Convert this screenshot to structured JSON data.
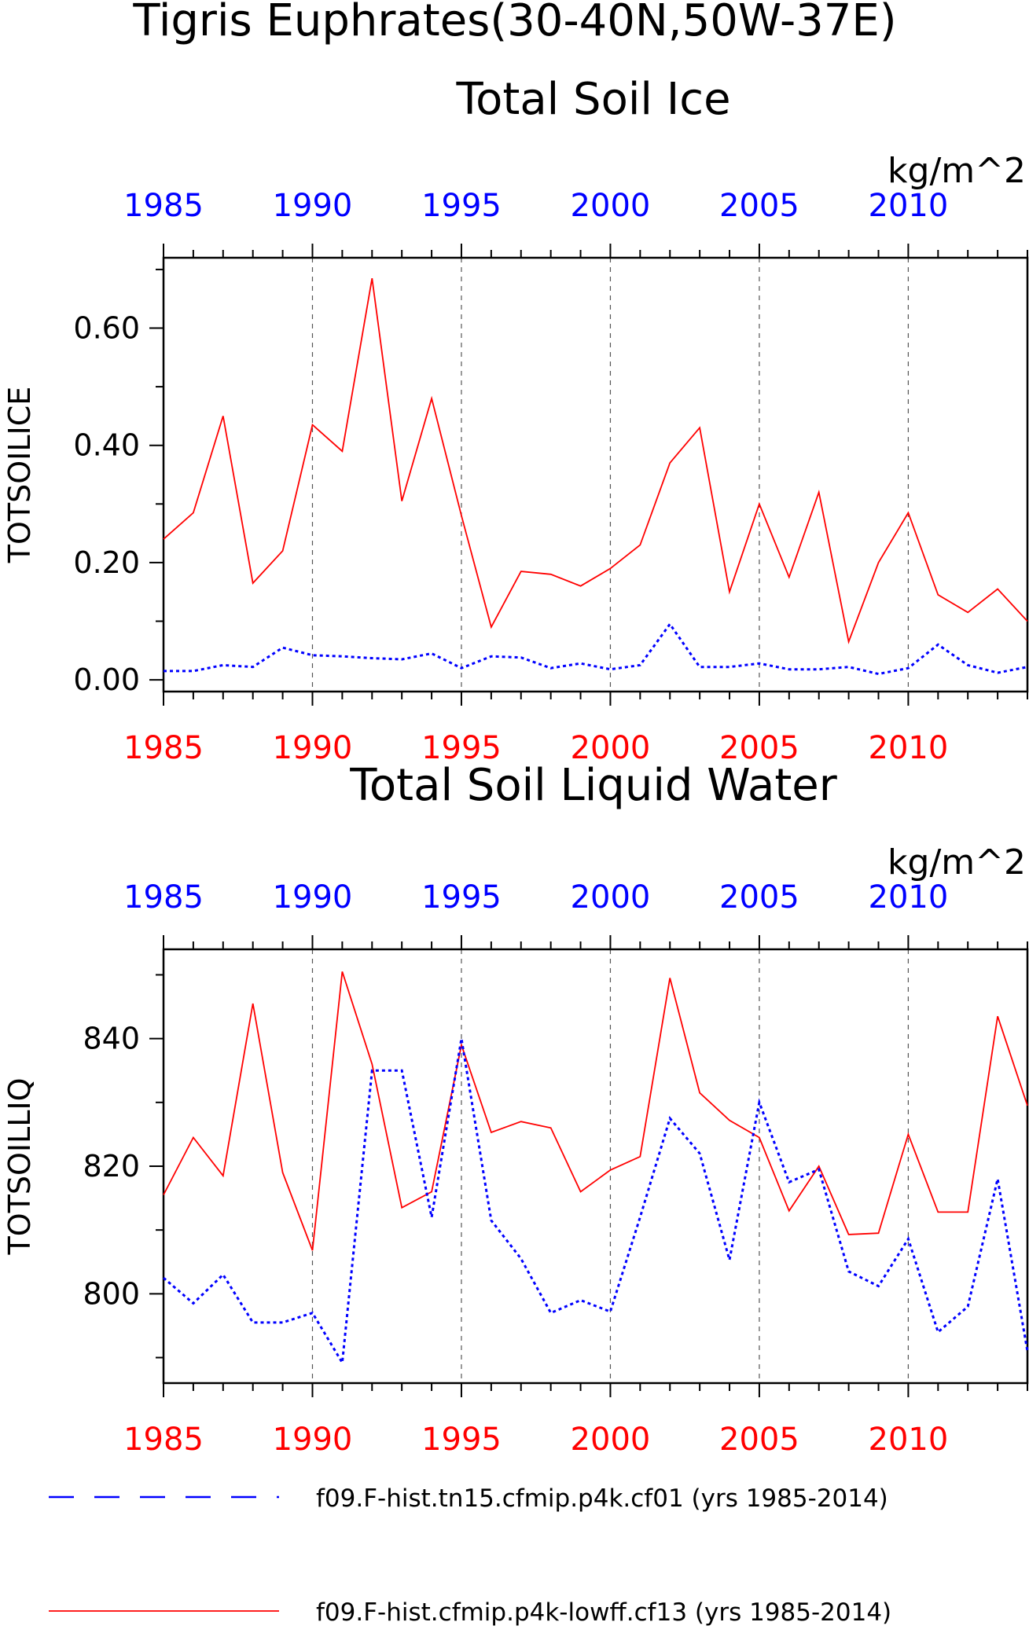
{
  "page": {
    "title": "Tigris Euphrates(30-40N,50W-37E)"
  },
  "legend": [
    {
      "label": "f09.F-hist.tn15.cfmip.p4k.cf01 (yrs 1985-2014)",
      "color": "#0000ff",
      "style": "dashed"
    },
    {
      "label": "f09.F-hist.cfmip.p4k-lowff.cf13 (yrs 1985-2014)",
      "color": "#ff0000",
      "style": "solid"
    }
  ],
  "colors": {
    "red": "#ff0000",
    "blue": "#0000ff",
    "axis": "#000000",
    "grid": "#555555"
  },
  "chart_data": [
    {
      "type": "line",
      "title": "Total Soil Ice",
      "ylabel": "TOTSOILICE",
      "units": "kg/m^2",
      "xlim": [
        1985,
        2014
      ],
      "ylim": [
        -0.02,
        0.72
      ],
      "yticks": [
        0.0,
        0.2,
        0.4,
        0.6
      ],
      "ytick_labels": [
        "0.00",
        "0.20",
        "0.40",
        "0.60"
      ],
      "xticks": [
        1985,
        1990,
        1995,
        2000,
        2005,
        2010
      ],
      "xtick_labels": [
        "1985",
        "1990",
        "1995",
        "2000",
        "2005",
        "2010"
      ],
      "grid": "vertical dashed at 1990, 1995, 2000, 2005, 2010",
      "x": [
        1985,
        1986,
        1987,
        1988,
        1989,
        1990,
        1991,
        1992,
        1993,
        1994,
        1995,
        1996,
        1997,
        1998,
        1999,
        2000,
        2001,
        2002,
        2003,
        2004,
        2005,
        2006,
        2007,
        2008,
        2009,
        2010,
        2011,
        2012,
        2013,
        2014
      ],
      "series": [
        {
          "name": "f09.F-hist.cfmip.p4k-lowff.cf13 (yrs 1985-2014)",
          "color": "#ff0000",
          "style": "solid",
          "values": [
            0.24,
            0.285,
            0.45,
            0.165,
            0.22,
            0.435,
            0.39,
            0.685,
            0.305,
            0.48,
            0.28,
            0.09,
            0.185,
            0.18,
            0.16,
            0.19,
            0.23,
            0.37,
            0.43,
            0.15,
            0.3,
            0.175,
            0.32,
            0.065,
            0.2,
            0.285,
            0.145,
            0.115,
            0.155,
            0.1
          ]
        },
        {
          "name": "f09.F-hist.tn15.cfmip.p4k.cf01 (yrs 1985-2014)",
          "color": "#0000ff",
          "style": "dashed",
          "values": [
            0.015,
            0.015,
            0.025,
            0.022,
            0.055,
            0.042,
            0.04,
            0.037,
            0.035,
            0.045,
            0.02,
            0.04,
            0.038,
            0.02,
            0.028,
            0.018,
            0.025,
            0.095,
            0.022,
            0.022,
            0.028,
            0.018,
            0.018,
            0.022,
            0.01,
            0.02,
            0.06,
            0.025,
            0.012,
            0.022
          ]
        }
      ]
    },
    {
      "type": "line",
      "title": "Total Soil Liquid Water",
      "ylabel": "TOTSOILLIQ",
      "units": "kg/m^2",
      "xlim": [
        1985,
        2014
      ],
      "ylim": [
        786,
        854
      ],
      "yticks": [
        800,
        820,
        840
      ],
      "ytick_labels": [
        "800",
        "820",
        "840"
      ],
      "xticks": [
        1985,
        1990,
        1995,
        2000,
        2005,
        2010
      ],
      "xtick_labels": [
        "1985",
        "1990",
        "1995",
        "2000",
        "2005",
        "2010"
      ],
      "grid": "vertical dashed at 1990, 1995, 2000, 2005, 2010",
      "x": [
        1985,
        1986,
        1987,
        1988,
        1989,
        1990,
        1991,
        1992,
        1993,
        1994,
        1995,
        1996,
        1997,
        1998,
        1999,
        2000,
        2001,
        2002,
        2003,
        2004,
        2005,
        2006,
        2007,
        2008,
        2009,
        2010,
        2011,
        2012,
        2013,
        2014
      ],
      "series": [
        {
          "name": "f09.F-hist.cfmip.p4k-lowff.cf13 (yrs 1985-2014)",
          "color": "#ff0000",
          "style": "solid",
          "values": [
            815.5,
            824.5,
            818.5,
            845.5,
            819,
            806.8,
            850.5,
            836,
            813.5,
            816,
            839,
            825.3,
            827,
            826,
            816,
            819.4,
            821.5,
            849.5,
            831.5,
            827.2,
            824.5,
            813,
            820,
            809.3,
            809.5,
            825,
            812.8,
            812.8,
            843.5,
            829.5
          ]
        },
        {
          "name": "f09.F-hist.tn15.cfmip.p4k.cf01 (yrs 1985-2014)",
          "color": "#0000ff",
          "style": "dashed",
          "values": [
            802.5,
            798.5,
            803,
            795.5,
            795.5,
            797,
            789.2,
            835,
            835,
            812,
            840,
            811.5,
            805.5,
            797,
            799,
            797.2,
            812,
            827.5,
            822,
            805.3,
            830,
            817.5,
            819.5,
            803.5,
            801.2,
            808.6,
            794,
            798,
            818,
            791
          ]
        }
      ]
    }
  ]
}
